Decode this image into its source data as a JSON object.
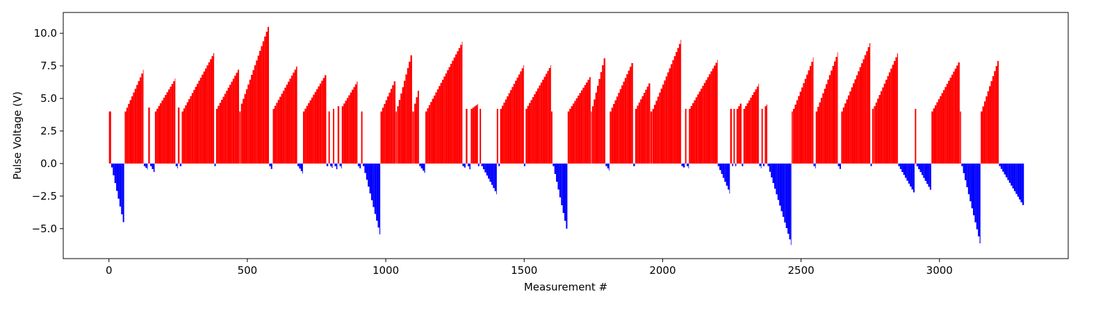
{
  "chart_data": {
    "type": "bar",
    "title": "",
    "xlabel": "Measurement #",
    "ylabel": "Pulse Voltage (V)",
    "xlim": [
      -165,
      3465
    ],
    "ylim": [
      -7.3,
      11.6
    ],
    "xticks": [
      0,
      500,
      1000,
      1500,
      2000,
      2500,
      3000
    ],
    "yticks": [
      -5.0,
      -2.5,
      0.0,
      2.5,
      5.0,
      7.5,
      10.0
    ],
    "ytick_labels": [
      "−5.0",
      "−2.5",
      "0.0",
      "2.5",
      "5.0",
      "7.5",
      "10.0"
    ],
    "grid": false,
    "colors": {
      "positive": "#ff0000",
      "negative": "#0000ff"
    },
    "note": "Each segment is a pulse ramp: voltage steps linearly from start to end across the x-range (positive = red, negative = blue).",
    "segments": [
      {
        "x": [
          0,
          8
        ],
        "v": [
          4.0,
          4.0
        ]
      },
      {
        "x": [
          8,
          55
        ],
        "v": [
          -0.3,
          -5.0
        ]
      },
      {
        "x": [
          57,
          125
        ],
        "v": [
          4.0,
          7.3
        ]
      },
      {
        "x": [
          126,
          140
        ],
        "v": [
          -0.2,
          -0.5
        ]
      },
      {
        "x": [
          142,
          148
        ],
        "v": [
          4.3,
          4.3
        ]
      },
      {
        "x": [
          149,
          165
        ],
        "v": [
          -0.2,
          -0.8
        ]
      },
      {
        "x": [
          166,
          240
        ],
        "v": [
          4.0,
          6.6
        ]
      },
      {
        "x": [
          241,
          248
        ],
        "v": [
          -0.2,
          -0.4
        ]
      },
      {
        "x": [
          249,
          255
        ],
        "v": [
          4.3,
          4.3
        ]
      },
      {
        "x": [
          256,
          262
        ],
        "v": [
          -0.2,
          -0.3
        ]
      },
      {
        "x": [
          263,
          380
        ],
        "v": [
          4.0,
          8.6
        ]
      },
      {
        "x": [
          381,
          386
        ],
        "v": [
          -0.2,
          -0.2
        ]
      },
      {
        "x": [
          387,
          470
        ],
        "v": [
          4.2,
          7.4
        ]
      },
      {
        "x": [
          471,
          476
        ],
        "v": [
          4.0,
          4.0
        ]
      },
      {
        "x": [
          477,
          578
        ],
        "v": [
          4.6,
          10.8
        ]
      },
      {
        "x": [
          579,
          590
        ],
        "v": [
          -0.2,
          -0.6
        ]
      },
      {
        "x": [
          592,
          680
        ],
        "v": [
          4.2,
          7.6
        ]
      },
      {
        "x": [
          681,
          700
        ],
        "v": [
          -0.2,
          -0.8
        ]
      },
      {
        "x": [
          701,
          785
        ],
        "v": [
          4.0,
          7.0
        ]
      },
      {
        "x": [
          786,
          792
        ],
        "v": [
          -0.2,
          -0.2
        ]
      },
      {
        "x": [
          793,
          798
        ],
        "v": [
          4.0,
          4.0
        ]
      },
      {
        "x": [
          799,
          808
        ],
        "v": [
          -0.2,
          -0.4
        ]
      },
      {
        "x": [
          809,
          814
        ],
        "v": [
          4.2,
          4.2
        ]
      },
      {
        "x": [
          815,
          825
        ],
        "v": [
          -0.2,
          -0.6
        ]
      },
      {
        "x": [
          826,
          832
        ],
        "v": [
          4.4,
          4.4
        ]
      },
      {
        "x": [
          833,
          840
        ],
        "v": [
          -0.2,
          -0.4
        ]
      },
      {
        "x": [
          841,
          898
        ],
        "v": [
          4.4,
          6.4
        ]
      },
      {
        "x": [
          899,
          910
        ],
        "v": [
          -0.2,
          -0.5
        ]
      },
      {
        "x": [
          911,
          916
        ],
        "v": [
          4.0,
          4.0
        ]
      },
      {
        "x": [
          917,
          980
        ],
        "v": [
          -0.2,
          -5.7
        ]
      },
      {
        "x": [
          981,
          1035
        ],
        "v": [
          4.0,
          6.6
        ]
      },
      {
        "x": [
          1036,
          1040
        ],
        "v": [
          4.0,
          4.0
        ]
      },
      {
        "x": [
          1041,
          1095
        ],
        "v": [
          4.4,
          8.8
        ]
      },
      {
        "x": [
          1096,
          1102
        ],
        "v": [
          4.0,
          4.0
        ]
      },
      {
        "x": [
          1103,
          1120
        ],
        "v": [
          4.6,
          6.0
        ]
      },
      {
        "x": [
          1121,
          1142
        ],
        "v": [
          -0.2,
          -0.8
        ]
      },
      {
        "x": [
          1143,
          1276
        ],
        "v": [
          4.0,
          9.4
        ]
      },
      {
        "x": [
          1277,
          1288
        ],
        "v": [
          -0.2,
          -0.4
        ]
      },
      {
        "x": [
          1289,
          1295
        ],
        "v": [
          4.2,
          4.2
        ]
      },
      {
        "x": [
          1296,
          1306
        ],
        "v": [
          -0.2,
          -0.6
        ]
      },
      {
        "x": [
          1307,
          1332
        ],
        "v": [
          4.2,
          4.6
        ]
      },
      {
        "x": [
          1333,
          1338
        ],
        "v": [
          -0.2,
          -0.2
        ]
      },
      {
        "x": [
          1339,
          1344
        ],
        "v": [
          4.2,
          4.2
        ]
      },
      {
        "x": [
          1345,
          1400
        ],
        "v": [
          -0.2,
          -2.4
        ]
      },
      {
        "x": [
          1401,
          1406
        ],
        "v": [
          4.2,
          4.2
        ]
      },
      {
        "x": [
          1407,
          1412
        ],
        "v": [
          -0.2,
          -0.2
        ]
      },
      {
        "x": [
          1413,
          1498
        ],
        "v": [
          4.2,
          7.6
        ]
      },
      {
        "x": [
          1499,
          1504
        ],
        "v": [
          -0.2,
          -0.2
        ]
      },
      {
        "x": [
          1505,
          1596
        ],
        "v": [
          4.2,
          7.6
        ]
      },
      {
        "x": [
          1597,
          1602
        ],
        "v": [
          4.0,
          4.0
        ]
      },
      {
        "x": [
          1603,
          1656
        ],
        "v": [
          -0.2,
          -5.5
        ]
      },
      {
        "x": [
          1657,
          1740
        ],
        "v": [
          4.0,
          6.8
        ]
      },
      {
        "x": [
          1741,
          1744
        ],
        "v": [
          4.0,
          4.0
        ]
      },
      {
        "x": [
          1745,
          1793
        ],
        "v": [
          4.4,
          8.6
        ]
      },
      {
        "x": [
          1794,
          1808
        ],
        "v": [
          -0.2,
          -0.6
        ]
      },
      {
        "x": [
          1809,
          1893
        ],
        "v": [
          4.0,
          8.0
        ]
      },
      {
        "x": [
          1894,
          1900
        ],
        "v": [
          -0.2,
          -0.2
        ]
      },
      {
        "x": [
          1901,
          1955
        ],
        "v": [
          4.2,
          6.4
        ]
      },
      {
        "x": [
          1956,
          1962
        ],
        "v": [
          4.0,
          4.0
        ]
      },
      {
        "x": [
          1963,
          2067
        ],
        "v": [
          4.2,
          9.6
        ]
      },
      {
        "x": [
          2068,
          2080
        ],
        "v": [
          -0.2,
          -0.4
        ]
      },
      {
        "x": [
          2081,
          2086
        ],
        "v": [
          4.2,
          4.2
        ]
      },
      {
        "x": [
          2087,
          2094
        ],
        "v": [
          -0.2,
          -0.4
        ]
      },
      {
        "x": [
          2095,
          2198
        ],
        "v": [
          4.2,
          8.0
        ]
      },
      {
        "x": [
          2199,
          2243
        ],
        "v": [
          -0.2,
          -2.4
        ]
      },
      {
        "x": [
          2244,
          2250
        ],
        "v": [
          4.2,
          4.2
        ]
      },
      {
        "x": [
          2251,
          2255
        ],
        "v": [
          -0.2,
          -0.2
        ]
      },
      {
        "x": [
          2256,
          2261
        ],
        "v": [
          4.2,
          4.2
        ]
      },
      {
        "x": [
          2262,
          2266
        ],
        "v": [
          -0.2,
          -0.2
        ]
      },
      {
        "x": [
          2267,
          2285
        ],
        "v": [
          4.2,
          4.8
        ]
      },
      {
        "x": [
          2286,
          2291
        ],
        "v": [
          -0.2,
          -0.2
        ]
      },
      {
        "x": [
          2292,
          2348
        ],
        "v": [
          4.2,
          6.2
        ]
      },
      {
        "x": [
          2349,
          2356
        ],
        "v": [
          -0.2,
          -0.4
        ]
      },
      {
        "x": [
          2357,
          2362
        ],
        "v": [
          4.2,
          4.2
        ]
      },
      {
        "x": [
          2363,
          2368
        ],
        "v": [
          -0.2,
          -0.2
        ]
      },
      {
        "x": [
          2369,
          2378
        ],
        "v": [
          4.4,
          4.6
        ]
      },
      {
        "x": [
          2379,
          2465
        ],
        "v": [
          -0.2,
          -6.4
        ]
      },
      {
        "x": [
          2466,
          2470
        ],
        "v": [
          4.0,
          4.0
        ]
      },
      {
        "x": [
          2471,
          2544
        ],
        "v": [
          4.2,
          8.2
        ]
      },
      {
        "x": [
          2545,
          2552
        ],
        "v": [
          -0.2,
          -0.4
        ]
      },
      {
        "x": [
          2553,
          2632
        ],
        "v": [
          4.0,
          8.6
        ]
      },
      {
        "x": [
          2633,
          2644
        ],
        "v": [
          -0.2,
          -0.6
        ]
      },
      {
        "x": [
          2645,
          2750
        ],
        "v": [
          4.0,
          9.4
        ]
      },
      {
        "x": [
          2751,
          2756
        ],
        "v": [
          -0.2,
          -0.4
        ]
      },
      {
        "x": [
          2757,
          2762
        ],
        "v": [
          4.2,
          4.2
        ]
      },
      {
        "x": [
          2763,
          2850
        ],
        "v": [
          4.4,
          8.6
        ]
      },
      {
        "x": [
          2851,
          2910
        ],
        "v": [
          -0.2,
          -2.4
        ]
      },
      {
        "x": [
          2911,
          2916
        ],
        "v": [
          4.2,
          4.2
        ]
      },
      {
        "x": [
          2917,
          2970
        ],
        "v": [
          -0.2,
          -2.2
        ]
      },
      {
        "x": [
          2971,
          3073
        ],
        "v": [
          4.0,
          8.0
        ]
      },
      {
        "x": [
          3074,
          3078
        ],
        "v": [
          4.0,
          4.0
        ]
      },
      {
        "x": [
          3079,
          3148
        ],
        "v": [
          -0.2,
          -6.4
        ]
      },
      {
        "x": [
          3149,
          3214
        ],
        "v": [
          4.0,
          8.2
        ]
      },
      {
        "x": [
          3215,
          3305
        ],
        "v": [
          -0.2,
          -3.4
        ]
      }
    ]
  }
}
